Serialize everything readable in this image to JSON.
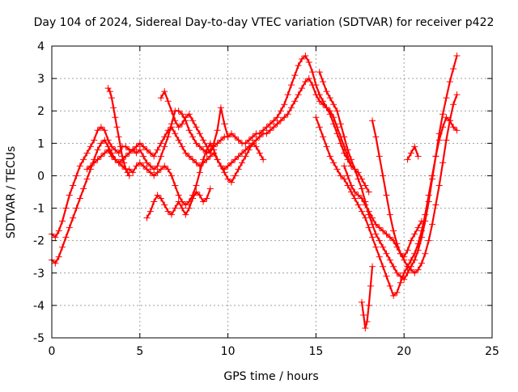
{
  "chart_data": {
    "type": "scatter",
    "title": "Day 104 of 2024, Sidereal Day-to-day VTEC variation (SDTVAR) for receiver p422",
    "xlabel": "GPS time / hours",
    "ylabel": "SDTVAR / TECUs",
    "xlim": [
      0,
      25
    ],
    "ylim": [
      -5,
      4
    ],
    "xticks": [
      "0",
      "5",
      "10",
      "15",
      "20",
      "25"
    ],
    "yticks": [
      "-5",
      "-4",
      "-3",
      "-2",
      "-1",
      "0",
      "1",
      "2",
      "3",
      "4"
    ],
    "grid": true,
    "marker": "+",
    "color": "#ff0000",
    "series": [
      {
        "name": "s1",
        "x": [
          0.0,
          0.2,
          0.4,
          0.6,
          0.8,
          1.0,
          1.2,
          1.4,
          1.6,
          1.8,
          2.0,
          2.2,
          2.4,
          2.6,
          2.8,
          3.0,
          3.2,
          3.4,
          3.6,
          3.8,
          4.0,
          4.2,
          4.4,
          4.6,
          4.8,
          5.0,
          5.2,
          5.4,
          5.6,
          5.8,
          6.0,
          6.2,
          6.4,
          6.6,
          6.8,
          7.0,
          7.2,
          7.4,
          7.6,
          7.8,
          8.0,
          8.2,
          8.4,
          8.6,
          8.8,
          9.0,
          9.2,
          9.4,
          9.6,
          9.8,
          10.0,
          10.2,
          10.4,
          10.6,
          10.8,
          11.0,
          11.2,
          11.4,
          11.6,
          11.8,
          12.0,
          12.2,
          12.4,
          12.6,
          12.8,
          13.0,
          13.2,
          13.4,
          13.6,
          13.8,
          14.0,
          14.2,
          14.4,
          14.6,
          14.8,
          15.0,
          15.2,
          15.4,
          15.6,
          15.8,
          16.0,
          16.2,
          16.4,
          16.6,
          16.8,
          17.0,
          17.2,
          17.4,
          17.6,
          17.8,
          18.0
        ],
        "y": [
          -1.8,
          -1.9,
          -1.7,
          -1.4,
          -1.0,
          -0.6,
          -0.3,
          0.0,
          0.3,
          0.5,
          0.7,
          0.9,
          1.1,
          1.4,
          1.5,
          1.4,
          1.1,
          0.9,
          0.8,
          0.7,
          0.9,
          0.9,
          0.8,
          0.8,
          0.7,
          0.8,
          0.6,
          0.4,
          0.3,
          0.2,
          0.3,
          0.6,
          0.9,
          1.2,
          1.6,
          2.0,
          2.0,
          1.9,
          1.7,
          1.4,
          1.2,
          1.0,
          0.9,
          0.8,
          0.7,
          0.8,
          0.9,
          1.0,
          1.1,
          1.2,
          1.2,
          1.3,
          1.2,
          1.1,
          1.0,
          1.0,
          1.1,
          1.2,
          1.3,
          1.3,
          1.4,
          1.5,
          1.6,
          1.7,
          1.8,
          2.0,
          2.2,
          2.5,
          2.8,
          3.1,
          3.4,
          3.6,
          3.7,
          3.5,
          3.2,
          2.8,
          2.5,
          2.3,
          2.1,
          1.9,
          1.6,
          1.3,
          1.0,
          0.7,
          0.5,
          0.3,
          0.2,
          0.1,
          -0.1,
          -0.3,
          -0.5
        ]
      },
      {
        "name": "s2",
        "x": [
          0.0,
          0.2,
          0.4,
          0.6,
          0.8,
          1.0,
          1.2,
          1.4,
          1.6,
          1.8,
          2.0,
          2.2,
          2.4,
          2.6,
          2.8,
          3.0,
          3.2,
          3.4,
          3.6,
          3.8,
          4.0,
          4.2,
          4.4,
          4.6,
          4.8,
          5.0,
          5.2,
          5.4,
          5.6,
          5.8,
          6.0,
          6.2,
          6.4,
          6.6,
          6.8,
          7.0,
          7.2,
          7.4,
          7.6,
          7.8,
          8.0,
          8.2,
          8.4,
          8.6,
          8.8,
          9.0,
          9.2,
          9.4,
          9.6,
          9.8,
          10.0,
          10.2,
          10.4,
          10.6,
          10.8,
          11.0,
          11.2,
          11.4,
          11.6,
          11.8,
          12.0,
          12.2,
          12.4,
          12.6,
          12.8,
          13.0,
          13.2,
          13.4,
          13.6,
          13.8,
          14.0,
          14.2,
          14.4,
          14.6,
          14.8,
          15.0,
          15.2,
          15.4,
          15.6,
          15.8,
          16.0,
          16.2,
          16.4,
          16.6,
          16.8,
          17.0
        ],
        "y": [
          -2.6,
          -2.7,
          -2.5,
          -2.2,
          -1.9,
          -1.6,
          -1.3,
          -1.0,
          -0.7,
          -0.4,
          -0.1,
          0.2,
          0.5,
          0.8,
          1.0,
          1.1,
          0.9,
          0.7,
          0.5,
          0.4,
          0.3,
          0.2,
          0.2,
          0.1,
          0.3,
          0.4,
          0.3,
          0.2,
          0.1,
          0.0,
          0.1,
          0.2,
          0.3,
          0.2,
          0.0,
          -0.3,
          -0.6,
          -0.8,
          -0.9,
          -0.8,
          -0.6,
          -0.3,
          0.1,
          0.5,
          0.8,
          1.0,
          0.8,
          0.5,
          0.3,
          0.2,
          0.3,
          0.4,
          0.5,
          0.6,
          0.7,
          0.8,
          0.9,
          1.0,
          1.1,
          1.2,
          1.3,
          1.3,
          1.4,
          1.5,
          1.6,
          1.7,
          1.8,
          1.9,
          2.1,
          2.3,
          2.5,
          2.7,
          2.9,
          3.0,
          2.8,
          2.5,
          2.3,
          2.2,
          2.1,
          2.0,
          1.8,
          1.5,
          1.2,
          0.9,
          0.6,
          0.3
        ]
      },
      {
        "name": "s3",
        "x": [
          2.0,
          2.2,
          2.4,
          2.6,
          2.8,
          3.0,
          3.2,
          3.4,
          3.6,
          3.8,
          4.0,
          4.2,
          4.4,
          4.6,
          4.8,
          5.0,
          5.2,
          5.4,
          5.6,
          5.8,
          6.0,
          6.2,
          6.4,
          6.6,
          6.8,
          7.0,
          7.2,
          7.4,
          7.6,
          7.8,
          8.0,
          8.2,
          8.4,
          8.6,
          8.8,
          9.0,
          9.2,
          9.4,
          9.6,
          9.8,
          10.0,
          10.2,
          10.4,
          10.6,
          10.8,
          11.0,
          11.2,
          11.4,
          11.6,
          11.8,
          12.0
        ],
        "y": [
          0.2,
          0.3,
          0.4,
          0.5,
          0.6,
          0.7,
          0.8,
          0.6,
          0.5,
          0.4,
          0.5,
          0.6,
          0.7,
          0.8,
          0.9,
          1.0,
          0.9,
          0.8,
          0.7,
          0.6,
          0.8,
          1.0,
          1.2,
          1.4,
          1.5,
          1.3,
          1.1,
          0.9,
          0.7,
          0.6,
          0.5,
          0.4,
          0.3,
          0.4,
          0.5,
          0.6,
          0.7,
          0.5,
          0.3,
          0.1,
          -0.1,
          -0.2,
          0.0,
          0.2,
          0.4,
          0.6,
          0.8,
          1.0,
          0.9,
          0.7,
          0.5
        ]
      },
      {
        "name": "s4",
        "x": [
          3.2,
          3.3,
          3.4,
          3.5,
          3.6,
          3.7,
          3.8,
          3.9,
          4.0,
          4.1,
          4.2,
          4.3,
          4.4
        ],
        "y": [
          2.7,
          2.6,
          2.4,
          2.1,
          1.8,
          1.5,
          1.2,
          0.9,
          0.6,
          0.4,
          0.2,
          0.1,
          0.0
        ]
      },
      {
        "name": "s5",
        "x": [
          5.4,
          5.6,
          5.8,
          6.0,
          6.2,
          6.4,
          6.6,
          6.8,
          7.0,
          7.2,
          7.4,
          7.6,
          7.8,
          8.0,
          8.2,
          8.4,
          8.6,
          8.8,
          9.0
        ],
        "y": [
          -1.3,
          -1.1,
          -0.8,
          -0.6,
          -0.7,
          -0.9,
          -1.1,
          -1.2,
          -1.0,
          -0.8,
          -1.0,
          -1.2,
          -1.0,
          -0.7,
          -0.5,
          -0.6,
          -0.8,
          -0.7,
          -0.4
        ]
      },
      {
        "name": "s6",
        "x": [
          6.2,
          6.4,
          6.6,
          6.8,
          7.0,
          7.2,
          7.4,
          7.6,
          7.8,
          8.0,
          8.2,
          8.4,
          8.6,
          8.8,
          9.0,
          9.2,
          9.4,
          9.6,
          9.8,
          10.0
        ],
        "y": [
          2.4,
          2.6,
          2.3,
          2.0,
          1.7,
          1.5,
          1.6,
          1.8,
          1.9,
          1.7,
          1.5,
          1.3,
          1.1,
          0.9,
          0.7,
          1.0,
          1.4,
          2.1,
          1.6,
          1.2
        ]
      },
      {
        "name": "s7",
        "x": [
          15.2,
          15.4,
          15.6,
          15.8,
          16.0,
          16.2,
          16.4,
          16.6,
          16.8,
          17.0,
          17.2,
          17.4,
          17.6,
          17.8,
          18.0,
          18.2,
          18.4,
          18.6,
          18.8,
          19.0,
          19.2,
          19.4,
          19.6,
          19.8,
          20.0,
          20.2,
          20.4,
          20.6,
          20.8,
          21.0,
          21.2,
          21.4,
          21.6,
          21.8,
          22.0,
          22.2,
          22.4,
          22.6,
          22.8,
          23.0
        ],
        "y": [
          3.2,
          2.9,
          2.6,
          2.4,
          2.2,
          2.0,
          1.6,
          1.2,
          0.8,
          0.5,
          0.2,
          -0.1,
          -0.4,
          -0.8,
          -1.2,
          -1.5,
          -1.8,
          -2.0,
          -2.2,
          -2.4,
          -2.6,
          -2.8,
          -3.0,
          -3.1,
          -3.2,
          -3.0,
          -2.8,
          -2.6,
          -2.3,
          -1.9,
          -1.4,
          -0.8,
          -0.1,
          0.6,
          1.3,
          1.9,
          2.4,
          2.9,
          3.3,
          3.7
        ]
      },
      {
        "name": "s8",
        "x": [
          15.0,
          15.2,
          15.4,
          15.6,
          15.8,
          16.0,
          16.2,
          16.4,
          16.6,
          16.8,
          17.0,
          17.2,
          17.4,
          17.6,
          17.8,
          18.0,
          18.2,
          18.4,
          18.6,
          18.8,
          19.0,
          19.2,
          19.4,
          19.6,
          19.8,
          20.0,
          20.2,
          20.4,
          20.6,
          20.8,
          21.0,
          21.2,
          21.4,
          21.6,
          21.8,
          22.0,
          22.2,
          22.4,
          22.6,
          22.8,
          23.0
        ],
        "y": [
          1.8,
          1.5,
          1.2,
          0.9,
          0.6,
          0.4,
          0.2,
          0.0,
          -0.1,
          -0.3,
          -0.5,
          -0.7,
          -0.9,
          -1.1,
          -1.3,
          -1.6,
          -1.9,
          -2.2,
          -2.5,
          -2.8,
          -3.1,
          -3.4,
          -3.7,
          -3.6,
          -3.3,
          -3.0,
          -2.8,
          -2.6,
          -2.4,
          -2.1,
          -1.7,
          -1.2,
          -0.6,
          0.0,
          0.6,
          1.1,
          1.5,
          1.8,
          1.7,
          1.5,
          1.4
        ]
      },
      {
        "name": "s9",
        "x": [
          16.6,
          16.8,
          17.0,
          17.2,
          17.4,
          17.6,
          17.8,
          18.0,
          18.2,
          18.4,
          18.6,
          18.8,
          19.0,
          19.2,
          19.4,
          19.6,
          19.8,
          20.0,
          20.2,
          20.4,
          20.6,
          20.8,
          21.0,
          21.2,
          21.4,
          21.6,
          21.8,
          22.0,
          22.2,
          22.4,
          22.6,
          22.8,
          23.0
        ],
        "y": [
          0.3,
          0.0,
          -0.3,
          -0.5,
          -0.6,
          -0.7,
          -0.9,
          -1.1,
          -1.3,
          -1.5,
          -1.6,
          -1.7,
          -1.8,
          -1.9,
          -2.0,
          -2.2,
          -2.4,
          -2.6,
          -2.8,
          -2.9,
          -3.0,
          -2.9,
          -2.7,
          -2.4,
          -2.0,
          -1.5,
          -0.9,
          -0.3,
          0.4,
          1.1,
          1.7,
          2.2,
          2.5
        ]
      },
      {
        "name": "s10",
        "x": [
          17.6,
          17.7,
          17.8,
          17.9,
          18.0,
          18.1,
          18.2
        ],
        "y": [
          -3.9,
          -4.3,
          -4.7,
          -4.5,
          -4.0,
          -3.4,
          -2.8
        ]
      },
      {
        "name": "s11",
        "x": [
          18.2,
          18.4,
          18.6,
          18.8,
          19.0,
          19.2,
          19.4,
          19.6,
          19.8,
          20.0,
          20.2,
          20.4,
          20.6,
          20.8,
          21.0
        ],
        "y": [
          1.7,
          1.2,
          0.6,
          0.0,
          -0.6,
          -1.2,
          -1.7,
          -2.1,
          -2.4,
          -2.5,
          -2.3,
          -2.0,
          -1.8,
          -1.6,
          -1.4
        ]
      },
      {
        "name": "s12",
        "x": [
          20.2,
          20.4,
          20.6,
          20.8
        ],
        "y": [
          0.5,
          0.7,
          0.9,
          0.6
        ]
      }
    ]
  }
}
